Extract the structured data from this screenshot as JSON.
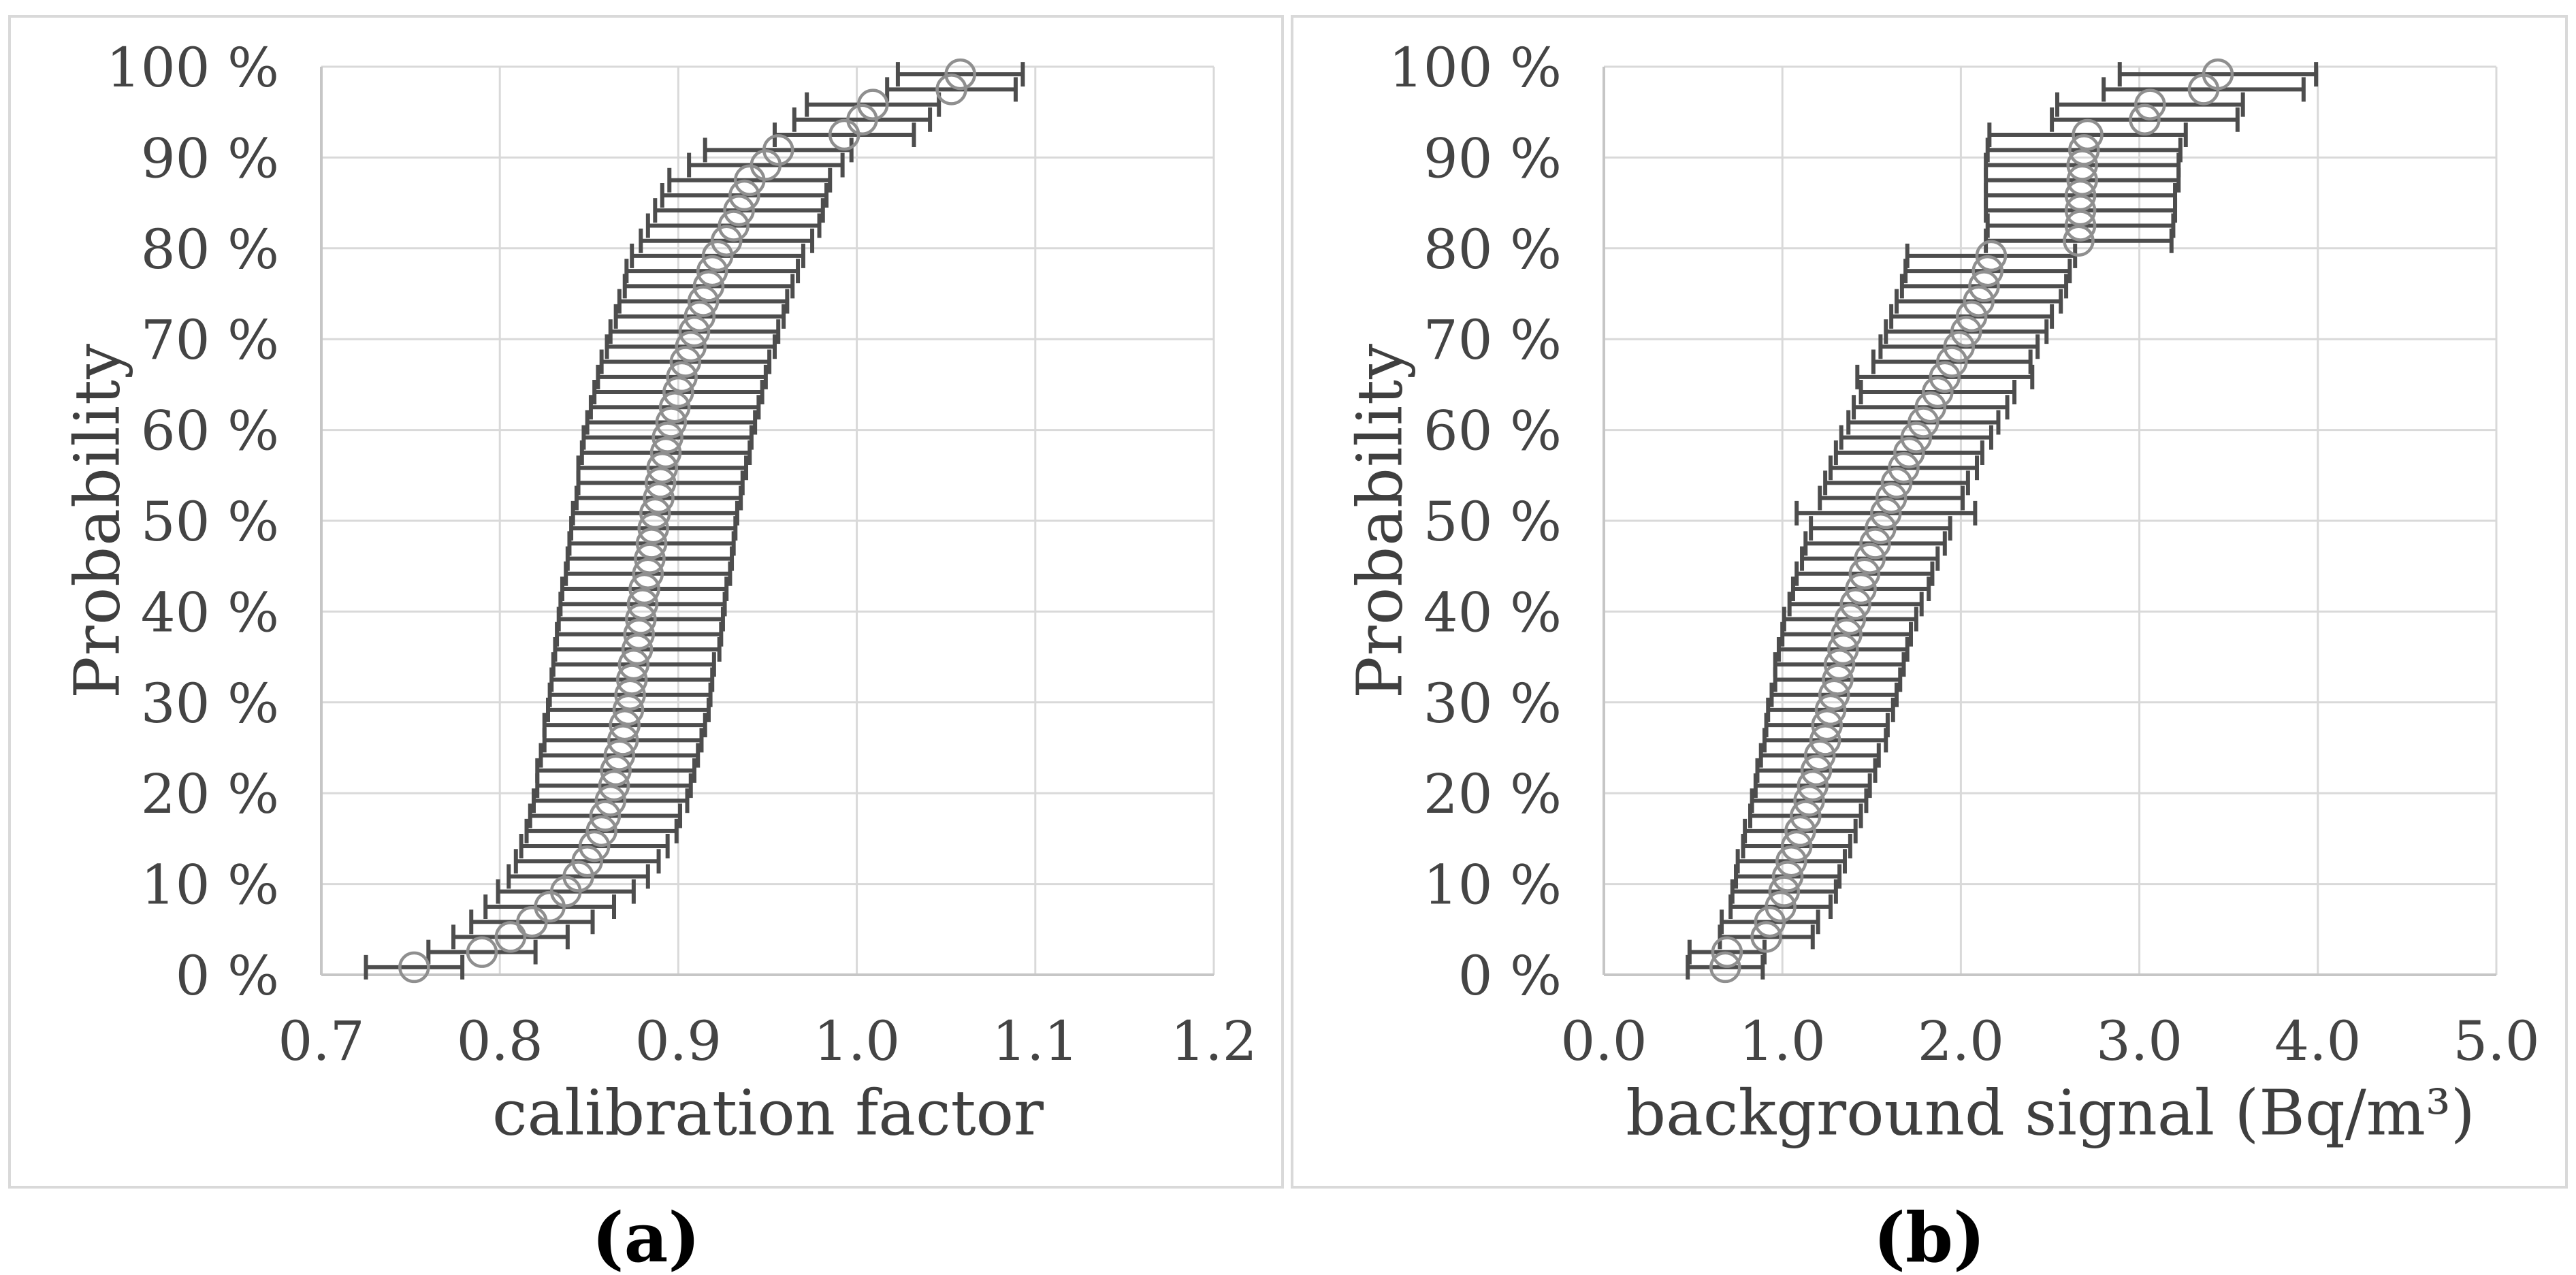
{
  "figure": {
    "captions": [
      {
        "id": "a",
        "label": "(a)"
      },
      {
        "id": "b",
        "label": "(b)"
      }
    ],
    "colors": {
      "background": "#ffffff",
      "panel_border": "#d9d9d9",
      "gridline": "#d9d9d9",
      "axis_line": "#c6c6c6",
      "error_bar": "#4d4d4d",
      "marker_stroke": "#8f8f8f",
      "tick_text": "#444444",
      "title_text": "#3f3f3f",
      "caption_text": "#000000"
    }
  },
  "chart_data": [
    {
      "id": "a",
      "type": "scatter",
      "subtype": "cumulative-probability-with-horizontal-error-bars",
      "title": "",
      "xlabel": "calibration factor",
      "ylabel": "Probability",
      "xlim": [
        0.7,
        1.2
      ],
      "ylim": [
        0,
        100
      ],
      "grid": true,
      "legend": false,
      "marker": "open-circle",
      "x_ticks": {
        "values": [
          0.7,
          0.8,
          0.9,
          1.0,
          1.1,
          1.2
        ],
        "labels": [
          "0.7",
          "0.8",
          "0.9",
          "1.0",
          "1.1",
          "1.2"
        ]
      },
      "y_ticks": {
        "values": [
          0,
          10,
          20,
          30,
          40,
          50,
          60,
          70,
          80,
          90,
          100
        ],
        "labels": [
          "0 %",
          "10 %",
          "20 %",
          "30 %",
          "40 %",
          "50 %",
          "60 %",
          "70 %",
          "80 %",
          "90 %",
          "100 %"
        ]
      },
      "point_format": [
        "probability_pct",
        "value",
        "half_error"
      ],
      "points": [
        [
          0.83,
          0.752,
          0.027
        ],
        [
          2.5,
          0.79,
          0.03
        ],
        [
          4.17,
          0.806,
          0.032
        ],
        [
          5.83,
          0.818,
          0.034
        ],
        [
          7.5,
          0.828,
          0.036
        ],
        [
          9.17,
          0.837,
          0.038
        ],
        [
          10.83,
          0.844,
          0.039
        ],
        [
          12.5,
          0.849,
          0.04
        ],
        [
          14.17,
          0.853,
          0.041
        ],
        [
          15.83,
          0.857,
          0.042
        ],
        [
          17.5,
          0.859,
          0.042
        ],
        [
          19.17,
          0.862,
          0.043
        ],
        [
          20.83,
          0.864,
          0.043
        ],
        [
          22.5,
          0.865,
          0.044
        ],
        [
          24.17,
          0.867,
          0.044
        ],
        [
          25.83,
          0.869,
          0.044
        ],
        [
          27.5,
          0.87,
          0.045
        ],
        [
          29.17,
          0.872,
          0.045
        ],
        [
          30.83,
          0.873,
          0.045
        ],
        [
          32.5,
          0.874,
          0.045
        ],
        [
          34.17,
          0.875,
          0.045
        ],
        [
          35.83,
          0.877,
          0.046
        ],
        [
          37.5,
          0.878,
          0.046
        ],
        [
          39.17,
          0.879,
          0.046
        ],
        [
          40.83,
          0.88,
          0.046
        ],
        [
          42.5,
          0.881,
          0.046
        ],
        [
          44.17,
          0.883,
          0.046
        ],
        [
          45.83,
          0.884,
          0.046
        ],
        [
          47.5,
          0.885,
          0.046
        ],
        [
          49.17,
          0.886,
          0.046
        ],
        [
          50.83,
          0.887,
          0.046
        ],
        [
          52.5,
          0.889,
          0.046
        ],
        [
          54.17,
          0.89,
          0.046
        ],
        [
          55.83,
          0.891,
          0.047
        ],
        [
          57.5,
          0.893,
          0.047
        ],
        [
          59.17,
          0.894,
          0.047
        ],
        [
          60.83,
          0.896,
          0.047
        ],
        [
          62.5,
          0.898,
          0.047
        ],
        [
          64.17,
          0.9,
          0.047
        ],
        [
          65.83,
          0.902,
          0.047
        ],
        [
          67.5,
          0.904,
          0.047
        ],
        [
          69.17,
          0.907,
          0.047
        ],
        [
          70.83,
          0.909,
          0.047
        ],
        [
          72.5,
          0.912,
          0.047
        ],
        [
          74.17,
          0.914,
          0.047
        ],
        [
          75.83,
          0.917,
          0.047
        ],
        [
          77.5,
          0.919,
          0.048
        ],
        [
          79.17,
          0.922,
          0.048
        ],
        [
          80.83,
          0.927,
          0.048
        ],
        [
          82.5,
          0.931,
          0.048
        ],
        [
          84.17,
          0.934,
          0.047
        ],
        [
          85.83,
          0.937,
          0.046
        ],
        [
          87.5,
          0.94,
          0.045
        ],
        [
          89.17,
          0.949,
          0.043
        ],
        [
          90.83,
          0.956,
          0.041
        ],
        [
          92.5,
          0.993,
          0.039
        ],
        [
          94.17,
          1.003,
          0.038
        ],
        [
          95.83,
          1.009,
          0.037
        ],
        [
          97.5,
          1.053,
          0.036
        ],
        [
          99.17,
          1.058,
          0.035
        ]
      ]
    },
    {
      "id": "b",
      "type": "scatter",
      "subtype": "cumulative-probability-with-horizontal-error-bars",
      "title": "",
      "xlabel": "background signal (Bq/m³)",
      "ylabel": "Probability",
      "xlim": [
        0.0,
        5.0
      ],
      "ylim": [
        0,
        100
      ],
      "grid": true,
      "legend": false,
      "marker": "open-circle",
      "x_ticks": {
        "values": [
          0.0,
          1.0,
          2.0,
          3.0,
          4.0,
          5.0
        ],
        "labels": [
          "0.0",
          "1.0",
          "2.0",
          "3.0",
          "4.0",
          "5.0"
        ]
      },
      "y_ticks": {
        "values": [
          0,
          10,
          20,
          30,
          40,
          50,
          60,
          70,
          80,
          90,
          100
        ],
        "labels": [
          "0 %",
          "10 %",
          "20 %",
          "30 %",
          "40 %",
          "50 %",
          "60 %",
          "70 %",
          "80 %",
          "90 %",
          "100 %"
        ]
      },
      "point_format": [
        "probability_pct",
        "value",
        "half_error"
      ],
      "points": [
        [
          0.83,
          0.68,
          0.21
        ],
        [
          2.5,
          0.69,
          0.21
        ],
        [
          4.17,
          0.91,
          0.26
        ],
        [
          5.83,
          0.93,
          0.27
        ],
        [
          7.5,
          0.99,
          0.28
        ],
        [
          9.17,
          1.01,
          0.29
        ],
        [
          10.83,
          1.03,
          0.29
        ],
        [
          12.5,
          1.05,
          0.3
        ],
        [
          14.17,
          1.08,
          0.3
        ],
        [
          15.83,
          1.1,
          0.31
        ],
        [
          17.5,
          1.13,
          0.31
        ],
        [
          19.17,
          1.15,
          0.32
        ],
        [
          20.83,
          1.17,
          0.32
        ],
        [
          22.5,
          1.19,
          0.33
        ],
        [
          24.17,
          1.21,
          0.33
        ],
        [
          25.83,
          1.24,
          0.34
        ],
        [
          27.5,
          1.25,
          0.34
        ],
        [
          29.17,
          1.27,
          0.35
        ],
        [
          30.83,
          1.29,
          0.35
        ],
        [
          32.5,
          1.31,
          0.35
        ],
        [
          34.17,
          1.32,
          0.36
        ],
        [
          35.83,
          1.34,
          0.36
        ],
        [
          37.5,
          1.36,
          0.36
        ],
        [
          39.17,
          1.38,
          0.37
        ],
        [
          40.83,
          1.41,
          0.37
        ],
        [
          42.5,
          1.44,
          0.38
        ],
        [
          44.17,
          1.46,
          0.38
        ],
        [
          45.83,
          1.49,
          0.38
        ],
        [
          47.5,
          1.52,
          0.39
        ],
        [
          49.17,
          1.55,
          0.39
        ],
        [
          50.83,
          1.58,
          0.5
        ],
        [
          52.5,
          1.61,
          0.4
        ],
        [
          54.17,
          1.64,
          0.4
        ],
        [
          55.83,
          1.68,
          0.41
        ],
        [
          57.5,
          1.71,
          0.41
        ],
        [
          59.17,
          1.75,
          0.42
        ],
        [
          60.83,
          1.79,
          0.42
        ],
        [
          62.5,
          1.83,
          0.43
        ],
        [
          64.17,
          1.87,
          0.43
        ],
        [
          65.83,
          1.91,
          0.49
        ],
        [
          67.5,
          1.95,
          0.44
        ],
        [
          69.17,
          1.99,
          0.44
        ],
        [
          70.83,
          2.03,
          0.45
        ],
        [
          72.5,
          2.06,
          0.45
        ],
        [
          74.17,
          2.1,
          0.46
        ],
        [
          75.83,
          2.13,
          0.46
        ],
        [
          77.5,
          2.15,
          0.46
        ],
        [
          79.17,
          2.17,
          0.47
        ],
        [
          80.83,
          2.66,
          0.52
        ],
        [
          82.5,
          2.67,
          0.52
        ],
        [
          84.17,
          2.67,
          0.53
        ],
        [
          85.83,
          2.67,
          0.53
        ],
        [
          87.5,
          2.68,
          0.54
        ],
        [
          89.17,
          2.68,
          0.54
        ],
        [
          90.83,
          2.69,
          0.54
        ],
        [
          92.5,
          2.71,
          0.55
        ],
        [
          94.17,
          3.03,
          0.52
        ],
        [
          95.83,
          3.06,
          0.52
        ],
        [
          97.5,
          3.36,
          0.56
        ],
        [
          99.17,
          3.44,
          0.55
        ]
      ]
    }
  ]
}
